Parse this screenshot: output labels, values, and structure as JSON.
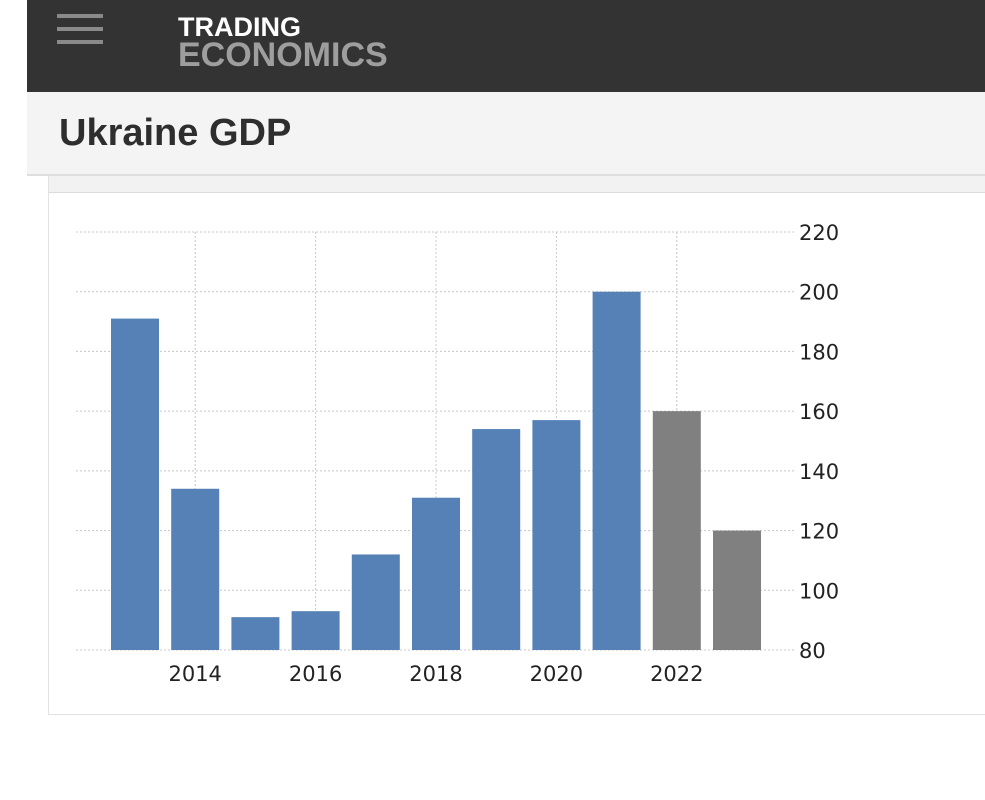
{
  "header": {
    "menu_icon": "hamburger-menu-icon",
    "brand_line1": "TRADING",
    "brand_line2": "ECONOMICS"
  },
  "page": {
    "title": "Ukraine GDP"
  },
  "chart_data": {
    "type": "bar",
    "title": "",
    "xlabel": "",
    "ylabel": "",
    "x": [
      2013,
      2014,
      2015,
      2016,
      2017,
      2018,
      2019,
      2020,
      2021,
      2022,
      2023
    ],
    "values": [
      191,
      134,
      91,
      93,
      112,
      131,
      154,
      157,
      200,
      160,
      120
    ],
    "bar_colors": [
      "#5581b7",
      "#5581b7",
      "#5581b7",
      "#5581b7",
      "#5581b7",
      "#5581b7",
      "#5581b7",
      "#5581b7",
      "#5581b7",
      "#808080",
      "#808080"
    ],
    "x_ticks": [
      "2014",
      "2016",
      "2018",
      "2020",
      "2022"
    ],
    "y_ticks": [
      80,
      100,
      120,
      140,
      160,
      180,
      200,
      220
    ],
    "ylim": [
      80,
      220
    ],
    "y_axis_side": "right",
    "grid": true
  }
}
